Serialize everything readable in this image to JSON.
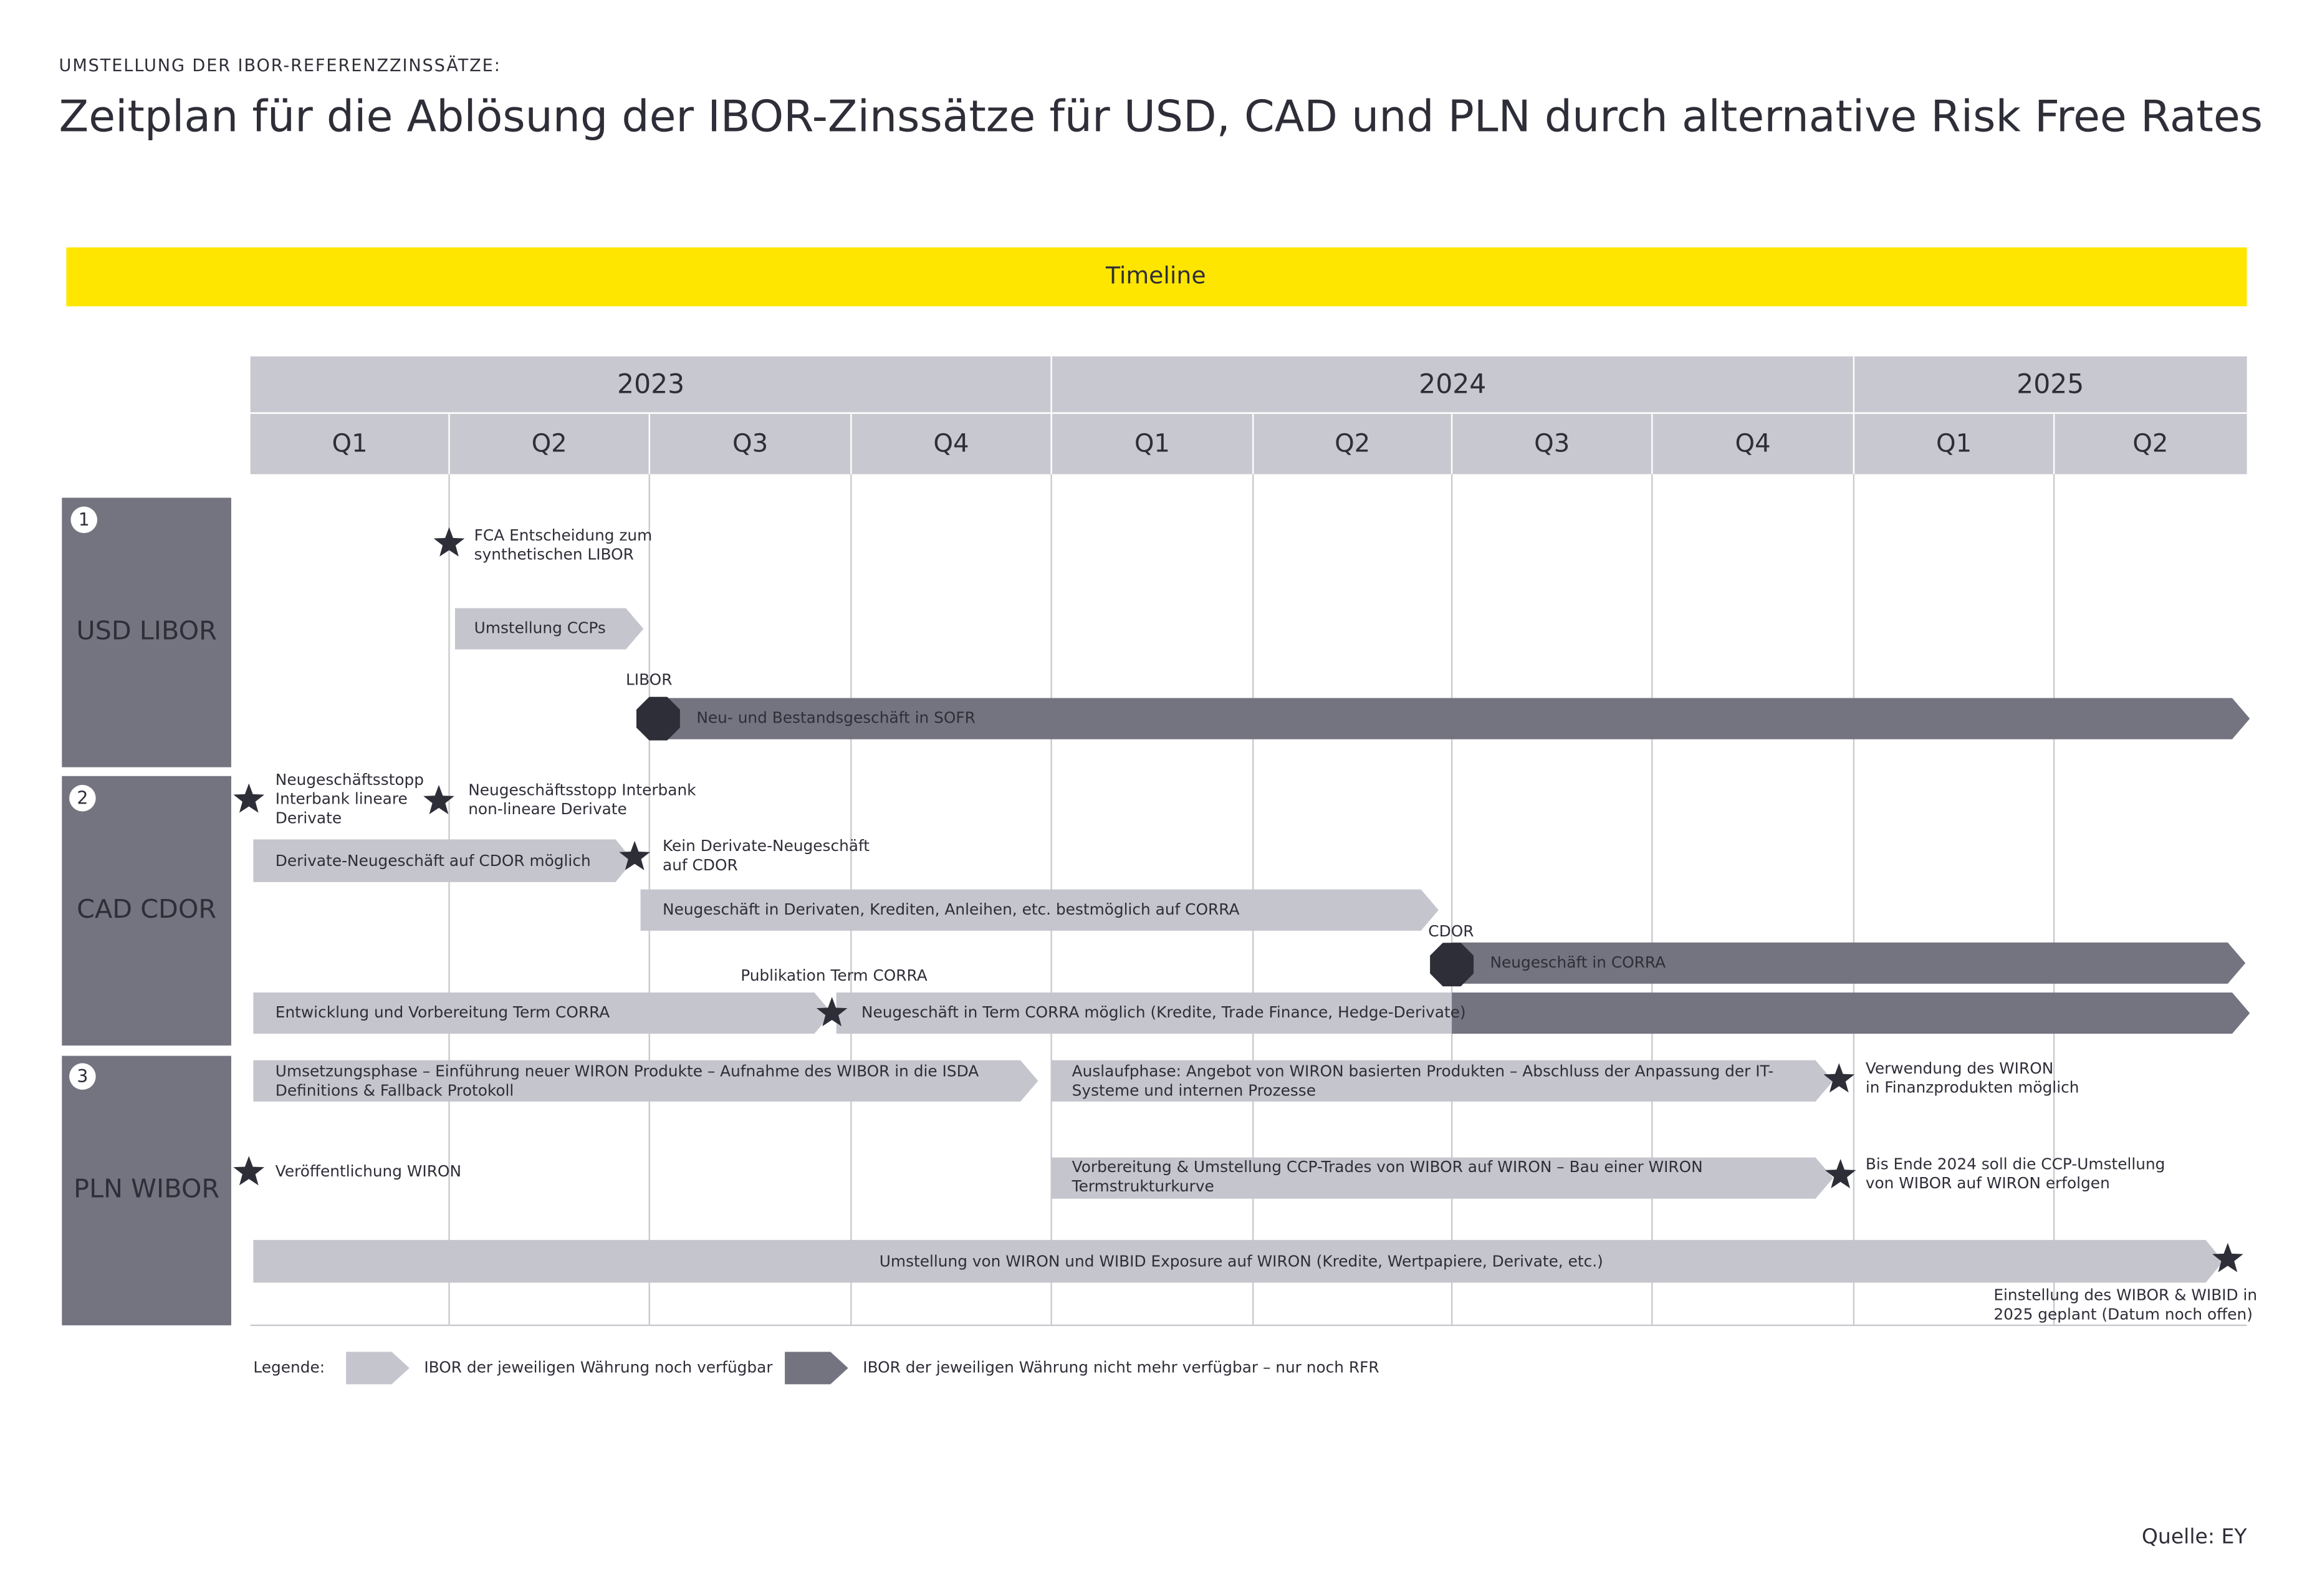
{
  "header": {
    "kicker": "UMSTELLUNG DER IBOR-REFERENZZINSSÄTZE:",
    "title": "Zeitplan für die Ablösung der IBOR-Zinssätze für USD, CAD und PLN durch alternative Risk Free Rates"
  },
  "timeline_label": "Timeline",
  "years": [
    "2023",
    "2024",
    "2025"
  ],
  "quarters": [
    "Q1",
    "Q2",
    "Q3",
    "Q4",
    "Q1",
    "Q2",
    "Q3",
    "Q4",
    "Q1",
    "Q2"
  ],
  "rows": [
    {
      "number": "1",
      "label": "USD LIBOR",
      "items": [
        {
          "lines": [
            "FCA Entscheidung zum",
            "synthetischen LIBOR"
          ]
        },
        {
          "lines": [
            "Umstellung CCPs"
          ]
        },
        {
          "lines": [
            "LIBOR"
          ]
        },
        {
          "lines": [
            "STOP"
          ]
        },
        {
          "lines": [
            "Neu- und Bestandsgeschäft in SOFR"
          ]
        }
      ]
    },
    {
      "number": "2",
      "label": "CAD CDOR",
      "items": [
        {
          "lines": [
            "Neugeschäftsstopp",
            "Interbank lineare",
            "Derivate"
          ]
        },
        {
          "lines": [
            "Neugeschäftsstopp Interbank",
            "non-lineare Derivate"
          ]
        },
        {
          "lines": [
            "Derivate-Neugeschäft auf CDOR möglich"
          ]
        },
        {
          "lines": [
            "Kein Derivate-Neugeschäft",
            "auf CDOR"
          ]
        },
        {
          "lines": [
            "Neugeschäft in Derivaten, Krediten, Anleihen, etc. bestmöglich auf CORRA"
          ]
        },
        {
          "lines": [
            "CDOR"
          ]
        },
        {
          "lines": [
            "STOP"
          ]
        },
        {
          "lines": [
            "Neugeschäft in CORRA"
          ]
        },
        {
          "lines": [
            "Publikation Term CORRA"
          ]
        },
        {
          "lines": [
            "Entwicklung und Vorbereitung Term CORRA"
          ]
        },
        {
          "lines": [
            "Neugeschäft in Term CORRA möglich (Kredite, Trade Finance, Hedge-Derivate)"
          ]
        }
      ]
    },
    {
      "number": "3",
      "label": "PLN WIBOR",
      "items": [
        {
          "lines": [
            "Umsetzungsphase – Einführung neuer WIRON Produkte – Aufnahme des WIBOR in die ISDA",
            "Definitions & Fallback Protokoll"
          ]
        },
        {
          "lines": [
            "Auslaufphase: Angebot von WIRON basierten Produkten – Abschluss der Anpassung der IT-",
            "Systeme und internen Prozesse"
          ]
        },
        {
          "lines": [
            "Verwendung des WIRON",
            "in Finanzprodukten möglich"
          ]
        },
        {
          "lines": [
            "Veröffentlichung WIRON"
          ]
        },
        {
          "lines": [
            "Vorbereitung & Umstellung CCP-Trades von WIBOR auf WIRON – Bau einer WIRON",
            "Termstrukturkurve"
          ]
        },
        {
          "lines": [
            "Bis Ende 2024 soll die CCP-Umstellung",
            "von WIBOR auf WIRON erfolgen"
          ]
        },
        {
          "lines": [
            "Umstellung von WIRON und WIBID Exposure auf WIRON (Kredite, Wertpapiere, Derivate, etc.)"
          ]
        },
        {
          "lines": [
            "Einstellung des WIBOR & WIBID in",
            "2025 geplant (Datum noch offen)"
          ]
        }
      ]
    }
  ],
  "legend": {
    "title": "Legende:",
    "available": "IBOR der jeweiligen Währung noch verfügbar",
    "unavailable": "IBOR der jeweiligen Währung nicht mehr verfügbar – nur noch RFR"
  },
  "source": "Quelle: EY"
}
